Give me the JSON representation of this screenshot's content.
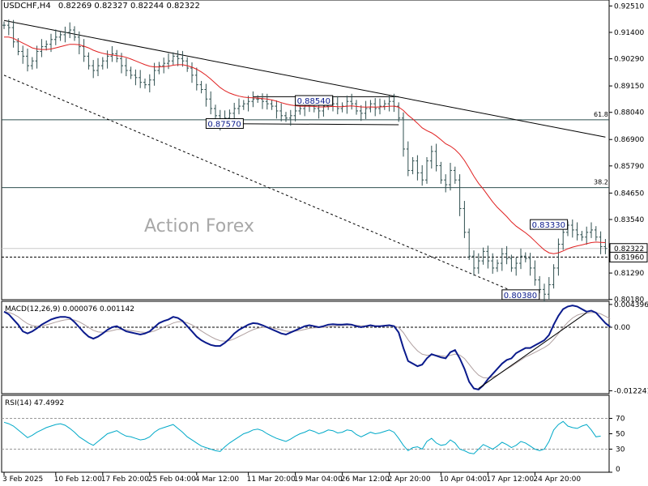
{
  "header": {
    "symbol": "USDCHF,H4",
    "ohlc": "0.82269 0.82327 0.82244 0.82322"
  },
  "watermark": "Action Forex",
  "chart_data": {
    "type": "line",
    "main": {
      "ylim": [
        0.8017,
        0.9276
      ],
      "y_ticks": [
        "0.92510",
        "0.91400",
        "0.90290",
        "0.89150",
        "0.88040",
        "0.86900",
        "0.85790",
        "0.84650",
        "0.83540",
        "0.82322",
        "0.81960",
        "0.81290",
        "0.80180"
      ],
      "y_tick_values": [
        0.9251,
        0.914,
        0.9029,
        0.8915,
        0.8804,
        0.869,
        0.8579,
        0.8465,
        0.8354,
        0.82322,
        0.8196,
        0.8129,
        0.8018
      ],
      "last_price": {
        "value": 0.82322,
        "label": "0.82322"
      },
      "level_line": {
        "value": 0.8196,
        "label": "0.81960"
      },
      "fib_levels": [
        {
          "label": "61.8",
          "value": 0.8773
        },
        {
          "label": "38.2",
          "value": 0.8488
        }
      ],
      "callouts": [
        {
          "label": "0.88540",
          "x": 62,
          "y": 0.8854
        },
        {
          "label": "0.87570",
          "x": 43,
          "y": 0.8757
        },
        {
          "label": "0.83330",
          "x": 112,
          "y": 0.8333
        },
        {
          "label": "0.80380",
          "x": 106,
          "y": 0.8038
        }
      ],
      "trendlines": [
        {
          "style": "solid",
          "from": [
            0,
            0.919
          ],
          "to": [
            128,
            0.87
          ]
        },
        {
          "style": "dashed",
          "from": [
            0,
            0.896
          ],
          "to": [
            110,
            0.8038
          ]
        },
        {
          "style": "solid",
          "from": [
            53,
            0.887
          ],
          "to": [
            84,
            0.887
          ]
        },
        {
          "style": "solid",
          "from": [
            43,
            0.8757
          ],
          "to": [
            84,
            0.8752
          ]
        }
      ],
      "close": [
        0.917,
        0.916,
        0.91,
        0.906,
        0.904,
        0.9,
        0.902,
        0.906,
        0.908,
        0.909,
        0.911,
        0.912,
        0.913,
        0.914,
        0.915,
        0.912,
        0.908,
        0.904,
        0.9,
        0.898,
        0.9,
        0.902,
        0.904,
        0.905,
        0.903,
        0.9,
        0.898,
        0.896,
        0.895,
        0.893,
        0.892,
        0.894,
        0.898,
        0.9,
        0.901,
        0.902,
        0.904,
        0.903,
        0.902,
        0.899,
        0.896,
        0.892,
        0.89,
        0.886,
        0.882,
        0.879,
        0.876,
        0.878,
        0.88,
        0.882,
        0.883,
        0.884,
        0.885,
        0.886,
        0.886,
        0.885,
        0.884,
        0.883,
        0.881,
        0.879,
        0.878,
        0.879,
        0.881,
        0.882,
        0.883,
        0.884,
        0.882,
        0.881,
        0.883,
        0.885,
        0.884,
        0.882,
        0.883,
        0.885,
        0.884,
        0.881,
        0.88,
        0.882,
        0.884,
        0.882,
        0.883,
        0.884,
        0.885,
        0.883,
        0.878,
        0.865,
        0.856,
        0.86,
        0.855,
        0.852,
        0.86,
        0.864,
        0.858,
        0.852,
        0.85,
        0.856,
        0.852,
        0.84,
        0.83,
        0.82,
        0.815,
        0.818,
        0.822,
        0.818,
        0.815,
        0.817,
        0.821,
        0.819,
        0.815,
        0.817,
        0.82,
        0.819,
        0.815,
        0.81,
        0.806,
        0.804,
        0.808,
        0.815,
        0.825,
        0.83,
        0.833,
        0.831,
        0.829,
        0.828,
        0.83,
        0.831,
        0.828,
        0.824,
        0.8232
      ],
      "ma": [
        0.912,
        0.912,
        0.9115,
        0.9105,
        0.9095,
        0.9085,
        0.9075,
        0.907,
        0.9068,
        0.9068,
        0.907,
        0.9075,
        0.908,
        0.9085,
        0.909,
        0.909,
        0.9088,
        0.9082,
        0.9075,
        0.9065,
        0.9058,
        0.9052,
        0.9048,
        0.9045,
        0.9042,
        0.904,
        0.9035,
        0.9028,
        0.902,
        0.9012,
        0.9004,
        0.8998,
        0.8995,
        0.8995,
        0.8996,
        0.8998,
        0.9002,
        0.9004,
        0.9004,
        0.9,
        0.8994,
        0.8985,
        0.8974,
        0.896,
        0.8944,
        0.8926,
        0.8908,
        0.8895,
        0.8885,
        0.8878,
        0.8872,
        0.8868,
        0.8866,
        0.8865,
        0.8864,
        0.8862,
        0.886,
        0.8856,
        0.8851,
        0.8845,
        0.8839,
        0.8835,
        0.8832,
        0.883,
        0.883,
        0.883,
        0.8829,
        0.8827,
        0.8827,
        0.8828,
        0.8829,
        0.8828,
        0.8828,
        0.883,
        0.8831,
        0.8829,
        0.8827,
        0.8826,
        0.8827,
        0.8826,
        0.8827,
        0.8828,
        0.883,
        0.883,
        0.8826,
        0.8812,
        0.8792,
        0.8776,
        0.8758,
        0.8739,
        0.8727,
        0.8718,
        0.8705,
        0.8689,
        0.8672,
        0.8662,
        0.8648,
        0.8628,
        0.8602,
        0.857,
        0.8536,
        0.8506,
        0.8482,
        0.8455,
        0.8428,
        0.8405,
        0.8386,
        0.8366,
        0.8344,
        0.8326,
        0.8312,
        0.8298,
        0.8282,
        0.8263,
        0.8244,
        0.8226,
        0.8214,
        0.821,
        0.8214,
        0.8222,
        0.8231,
        0.8238,
        0.8243,
        0.8247,
        0.8252,
        0.8257,
        0.8259,
        0.8258,
        0.8257
      ]
    },
    "macd": {
      "title": "MACD(12,26,9) 0.000076 0.001142",
      "ylim": [
        -0.0128,
        0.005
      ],
      "y_ticks": [
        "0.004396",
        "0.00",
        "-0.012241"
      ],
      "y_tick_values": [
        0.004396,
        0.0,
        -0.012241
      ],
      "macd": [
        0.003,
        0.0025,
        0.0015,
        0.0005,
        -0.0008,
        -0.0012,
        -0.0008,
        -0.0002,
        0.0005,
        0.001,
        0.0015,
        0.0018,
        0.002,
        0.002,
        0.0018,
        0.001,
        0.0,
        -0.001,
        -0.0018,
        -0.0022,
        -0.0018,
        -0.0012,
        -0.0005,
        0.0,
        0.0002,
        -0.0003,
        -0.0008,
        -0.001,
        -0.0012,
        -0.0014,
        -0.0012,
        -0.0008,
        0.0,
        0.0008,
        0.0012,
        0.0015,
        0.002,
        0.0018,
        0.0012,
        0.0002,
        -0.0008,
        -0.0018,
        -0.0025,
        -0.003,
        -0.0034,
        -0.0036,
        -0.0036,
        -0.003,
        -0.0022,
        -0.0012,
        -0.0005,
        0.0,
        0.0005,
        0.0008,
        0.0007,
        0.0004,
        0.0,
        -0.0004,
        -0.0008,
        -0.0012,
        -0.0014,
        -0.001,
        -0.0006,
        -0.0002,
        0.0002,
        0.0004,
        0.0002,
        0.0,
        0.0002,
        0.0005,
        0.0006,
        0.0005,
        0.0005,
        0.0006,
        0.0005,
        0.0002,
        0.0,
        0.0002,
        0.0004,
        0.0002,
        0.0002,
        0.0003,
        0.0004,
        0.0002,
        -0.001,
        -0.004,
        -0.0065,
        -0.007,
        -0.0075,
        -0.0072,
        -0.006,
        -0.0052,
        -0.0055,
        -0.0058,
        -0.006,
        -0.0048,
        -0.0044,
        -0.006,
        -0.008,
        -0.0105,
        -0.0118,
        -0.012,
        -0.0112,
        -0.01,
        -0.009,
        -0.008,
        -0.007,
        -0.0063,
        -0.006,
        -0.005,
        -0.0045,
        -0.004,
        -0.004,
        -0.0035,
        -0.003,
        -0.0025,
        -0.0015,
        0.0005,
        0.0022,
        0.0035,
        0.004,
        0.0042,
        0.004,
        0.0035,
        0.003,
        0.0032,
        0.0028,
        0.0018,
        0.0008,
        0.0001
      ]
    },
    "rsi": {
      "title": "RSI(14) 47.4992",
      "ylim": [
        0,
        100
      ],
      "levels": [
        70,
        30
      ],
      "y_ticks": [
        "70",
        "50",
        "30",
        "0"
      ],
      "y_tick_values": [
        70,
        50,
        30,
        0
      ],
      "values": [
        65,
        63,
        60,
        55,
        50,
        45,
        48,
        52,
        55,
        58,
        60,
        62,
        63,
        61,
        57,
        52,
        46,
        42,
        38,
        35,
        40,
        45,
        50,
        52,
        54,
        50,
        47,
        46,
        44,
        42,
        43,
        46,
        52,
        56,
        58,
        60,
        62,
        57,
        52,
        46,
        42,
        38,
        34,
        32,
        30,
        28,
        27,
        33,
        38,
        42,
        46,
        50,
        52,
        55,
        56,
        54,
        50,
        47,
        44,
        42,
        40,
        43,
        47,
        50,
        52,
        55,
        53,
        50,
        52,
        55,
        54,
        51,
        52,
        55,
        54,
        49,
        46,
        49,
        52,
        50,
        51,
        53,
        55,
        52,
        44,
        35,
        28,
        32,
        33,
        30,
        40,
        44,
        38,
        35,
        36,
        42,
        38,
        30,
        28,
        25,
        24,
        30,
        36,
        33,
        30,
        34,
        39,
        36,
        32,
        35,
        40,
        38,
        34,
        30,
        28,
        30,
        40,
        55,
        62,
        66,
        60,
        58,
        57,
        60,
        62,
        55,
        46,
        47
      ]
    },
    "x_ticks": [
      {
        "i": 0,
        "label": "3 Feb 2025"
      },
      {
        "i": 11,
        "label": "10 Feb 12:00"
      },
      {
        "i": 21,
        "label": "17 Feb 20:00"
      },
      {
        "i": 31,
        "label": "25 Feb 04:00"
      },
      {
        "i": 41,
        "label": "4 Mar 12:00"
      },
      {
        "i": 52,
        "label": "11 Mar 20:00"
      },
      {
        "i": 62,
        "label": "19 Mar 04:00"
      },
      {
        "i": 72,
        "label": "26 Mar 12:00"
      },
      {
        "i": 82,
        "label": "2 Apr 20:00"
      },
      {
        "i": 93,
        "label": "10 Apr 04:00"
      },
      {
        "i": 103,
        "label": "17 Apr 12:00"
      },
      {
        "i": 113,
        "label": "24 Apr 20:00"
      }
    ]
  },
  "colors": {
    "price": "#2F4F4F",
    "ma": "#E02020",
    "macd": "#0A1A8C",
    "signal": "#B0A0A0",
    "rsi": "#00A9C8",
    "grid": "#000000",
    "watermark": "#A8A8A8",
    "callout_text": "#0A1A8C"
  }
}
